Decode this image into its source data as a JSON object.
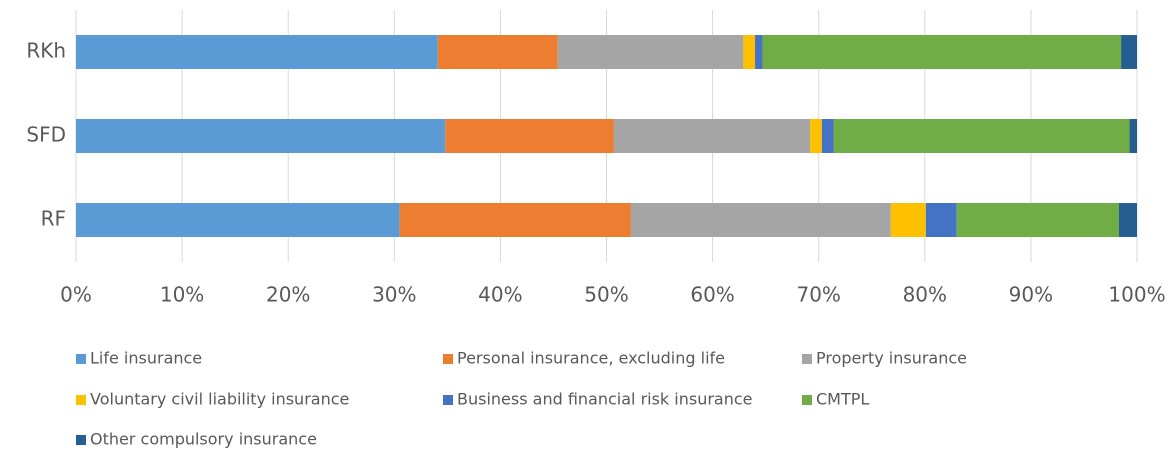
{
  "chart_data": {
    "type": "stacked_barh",
    "categories": [
      "RKh",
      "SFD",
      "RF"
    ],
    "series": [
      {
        "name": "Life insurance",
        "color": "#5B9BD5",
        "values": [
          34.1,
          34.8,
          30.5
        ]
      },
      {
        "name": "Personal insurance, excluding life",
        "color": "#ED7D31",
        "values": [
          11.3,
          15.9,
          21.8
        ]
      },
      {
        "name": "Property insurance",
        "color": "#A5A5A5",
        "values": [
          17.5,
          18.5,
          24.5
        ]
      },
      {
        "name": "Voluntary civil liability insurance",
        "color": "#FFC000",
        "values": [
          1.1,
          1.1,
          3.3
        ]
      },
      {
        "name": "Business and financial risk insurance",
        "color": "#4472C4",
        "values": [
          0.7,
          1.1,
          2.9
        ]
      },
      {
        "name": "CMTPL",
        "color": "#70AD47",
        "values": [
          33.8,
          27.9,
          15.3
        ]
      },
      {
        "name": "Other compulsory insurance",
        "color": "#255E91",
        "values": [
          1.5,
          0.7,
          1.7
        ]
      }
    ],
    "xlim": [
      0,
      100
    ],
    "xticks": [
      {
        "value": 0,
        "label": "0%"
      },
      {
        "value": 10,
        "label": "10%"
      },
      {
        "value": 20,
        "label": "20%"
      },
      {
        "value": 30,
        "label": "30%"
      },
      {
        "value": 40,
        "label": "40%"
      },
      {
        "value": 50,
        "label": "50%"
      },
      {
        "value": 60,
        "label": "60%"
      },
      {
        "value": 70,
        "label": "70%"
      },
      {
        "value": 80,
        "label": "80%"
      },
      {
        "value": 90,
        "label": "90%"
      },
      {
        "value": 100,
        "label": "100%"
      }
    ],
    "grid": true,
    "legend": "bottom"
  }
}
